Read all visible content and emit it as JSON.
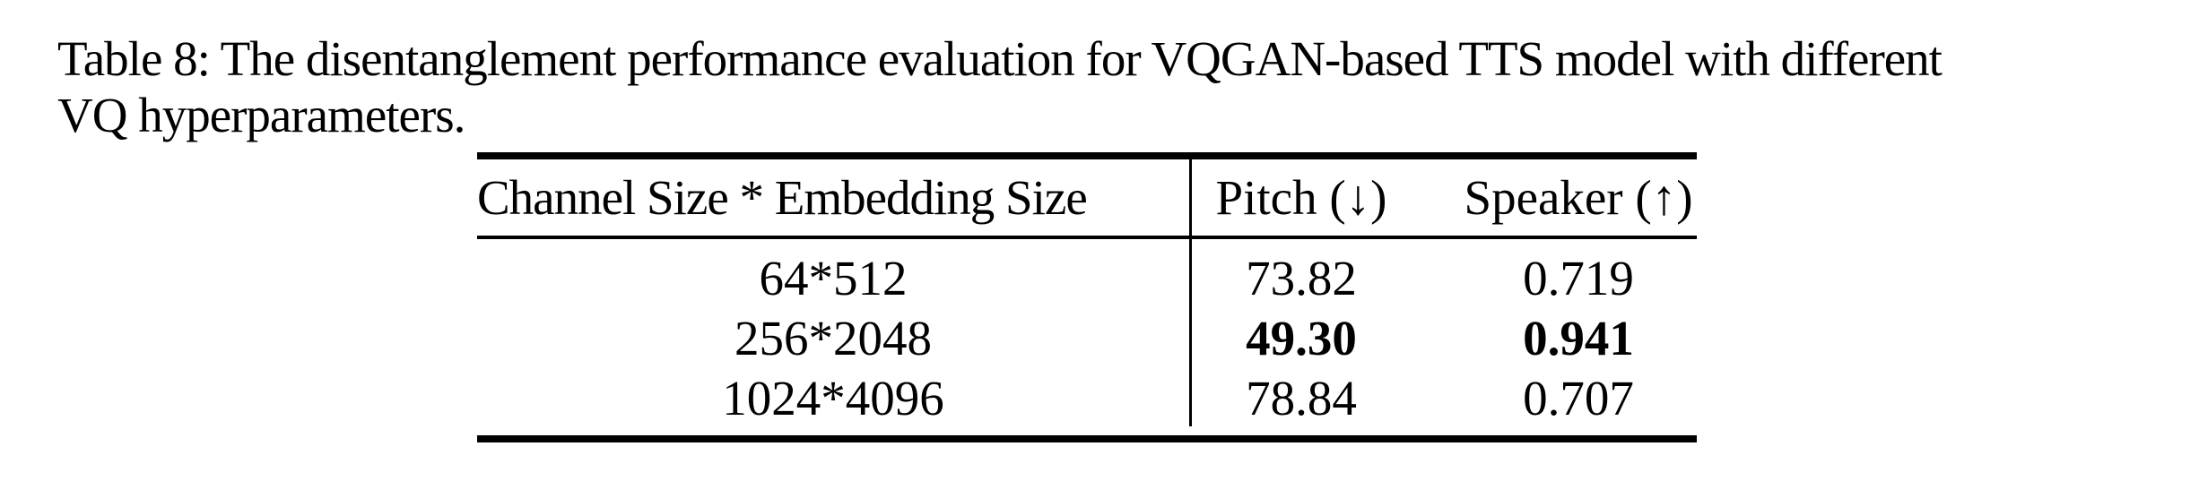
{
  "caption": {
    "line1": "Table 8: The disentanglement performance evaluation for VQGAN-based TTS model with different",
    "line2": "VQ hyperparameters."
  },
  "table": {
    "header": {
      "config": "Channel Size * Embedding Size",
      "pitch": "Pitch (↓)",
      "speaker": "Speaker (↑)"
    },
    "rows": [
      {
        "config": "64*512",
        "pitch": "73.82",
        "speaker": "0.719",
        "bold": false
      },
      {
        "config": "256*2048",
        "pitch": "49.30",
        "speaker": "0.941",
        "bold": true
      },
      {
        "config": "1024*4096",
        "pitch": "78.84",
        "speaker": "0.707",
        "bold": false
      }
    ]
  },
  "icons": {
    "down_arrow": "↓",
    "up_arrow": "↑"
  },
  "colors": {
    "text": "#000000",
    "background": "#ffffff",
    "rule": "#000000"
  }
}
